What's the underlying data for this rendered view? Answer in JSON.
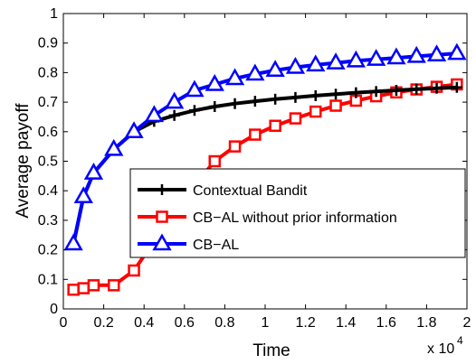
{
  "chart_data": {
    "type": "line",
    "title": "",
    "xlabel": "Time",
    "ylabel": "Average payoff",
    "x_multiplier_label": "x 10",
    "x_multiplier_exp": "4",
    "xlim": [
      0,
      2
    ],
    "ylim": [
      0,
      1
    ],
    "x_ticks": [
      "0",
      "0.2",
      "0.4",
      "0.6",
      "0.8",
      "1",
      "1.2",
      "1.4",
      "1.6",
      "1.8",
      "2"
    ],
    "y_ticks": [
      "0",
      "0.1",
      "0.2",
      "0.3",
      "0.4",
      "0.5",
      "0.6",
      "0.7",
      "0.8",
      "0.9",
      "1"
    ],
    "grid": false,
    "legend_position": "center-right",
    "series": [
      {
        "name": "Contextual Bandit",
        "color": "#000000",
        "marker": "plus",
        "x": [
          0.05,
          0.1,
          0.15,
          0.25,
          0.35,
          0.45,
          0.55,
          0.65,
          0.75,
          0.85,
          0.95,
          1.05,
          1.15,
          1.25,
          1.35,
          1.45,
          1.55,
          1.65,
          1.75,
          1.85,
          1.95
        ],
        "y": [
          0.22,
          0.38,
          0.46,
          0.54,
          0.6,
          0.635,
          0.655,
          0.672,
          0.685,
          0.695,
          0.703,
          0.71,
          0.716,
          0.722,
          0.727,
          0.732,
          0.736,
          0.74,
          0.744,
          0.747,
          0.75
        ]
      },
      {
        "name": "CB−AL without prior information",
        "color": "#ff0000",
        "marker": "square",
        "x": [
          0.05,
          0.1,
          0.15,
          0.25,
          0.35,
          0.45,
          0.55,
          0.65,
          0.75,
          0.85,
          0.95,
          1.05,
          1.15,
          1.25,
          1.35,
          1.45,
          1.55,
          1.65,
          1.75,
          1.85,
          1.95
        ],
        "y": [
          0.065,
          0.07,
          0.08,
          0.08,
          0.13,
          0.23,
          0.33,
          0.42,
          0.5,
          0.55,
          0.59,
          0.62,
          0.645,
          0.668,
          0.688,
          0.705,
          0.72,
          0.733,
          0.743,
          0.752,
          0.76
        ]
      },
      {
        "name": "CB−AL",
        "color": "#0000ff",
        "marker": "triangle",
        "x": [
          0.05,
          0.1,
          0.15,
          0.25,
          0.35,
          0.45,
          0.55,
          0.65,
          0.75,
          0.85,
          0.95,
          1.05,
          1.15,
          1.25,
          1.35,
          1.45,
          1.55,
          1.65,
          1.75,
          1.85,
          1.95
        ],
        "y": [
          0.22,
          0.38,
          0.46,
          0.54,
          0.6,
          0.655,
          0.7,
          0.74,
          0.76,
          0.78,
          0.795,
          0.808,
          0.818,
          0.826,
          0.833,
          0.84,
          0.845,
          0.85,
          0.855,
          0.86,
          0.865
        ]
      }
    ]
  }
}
